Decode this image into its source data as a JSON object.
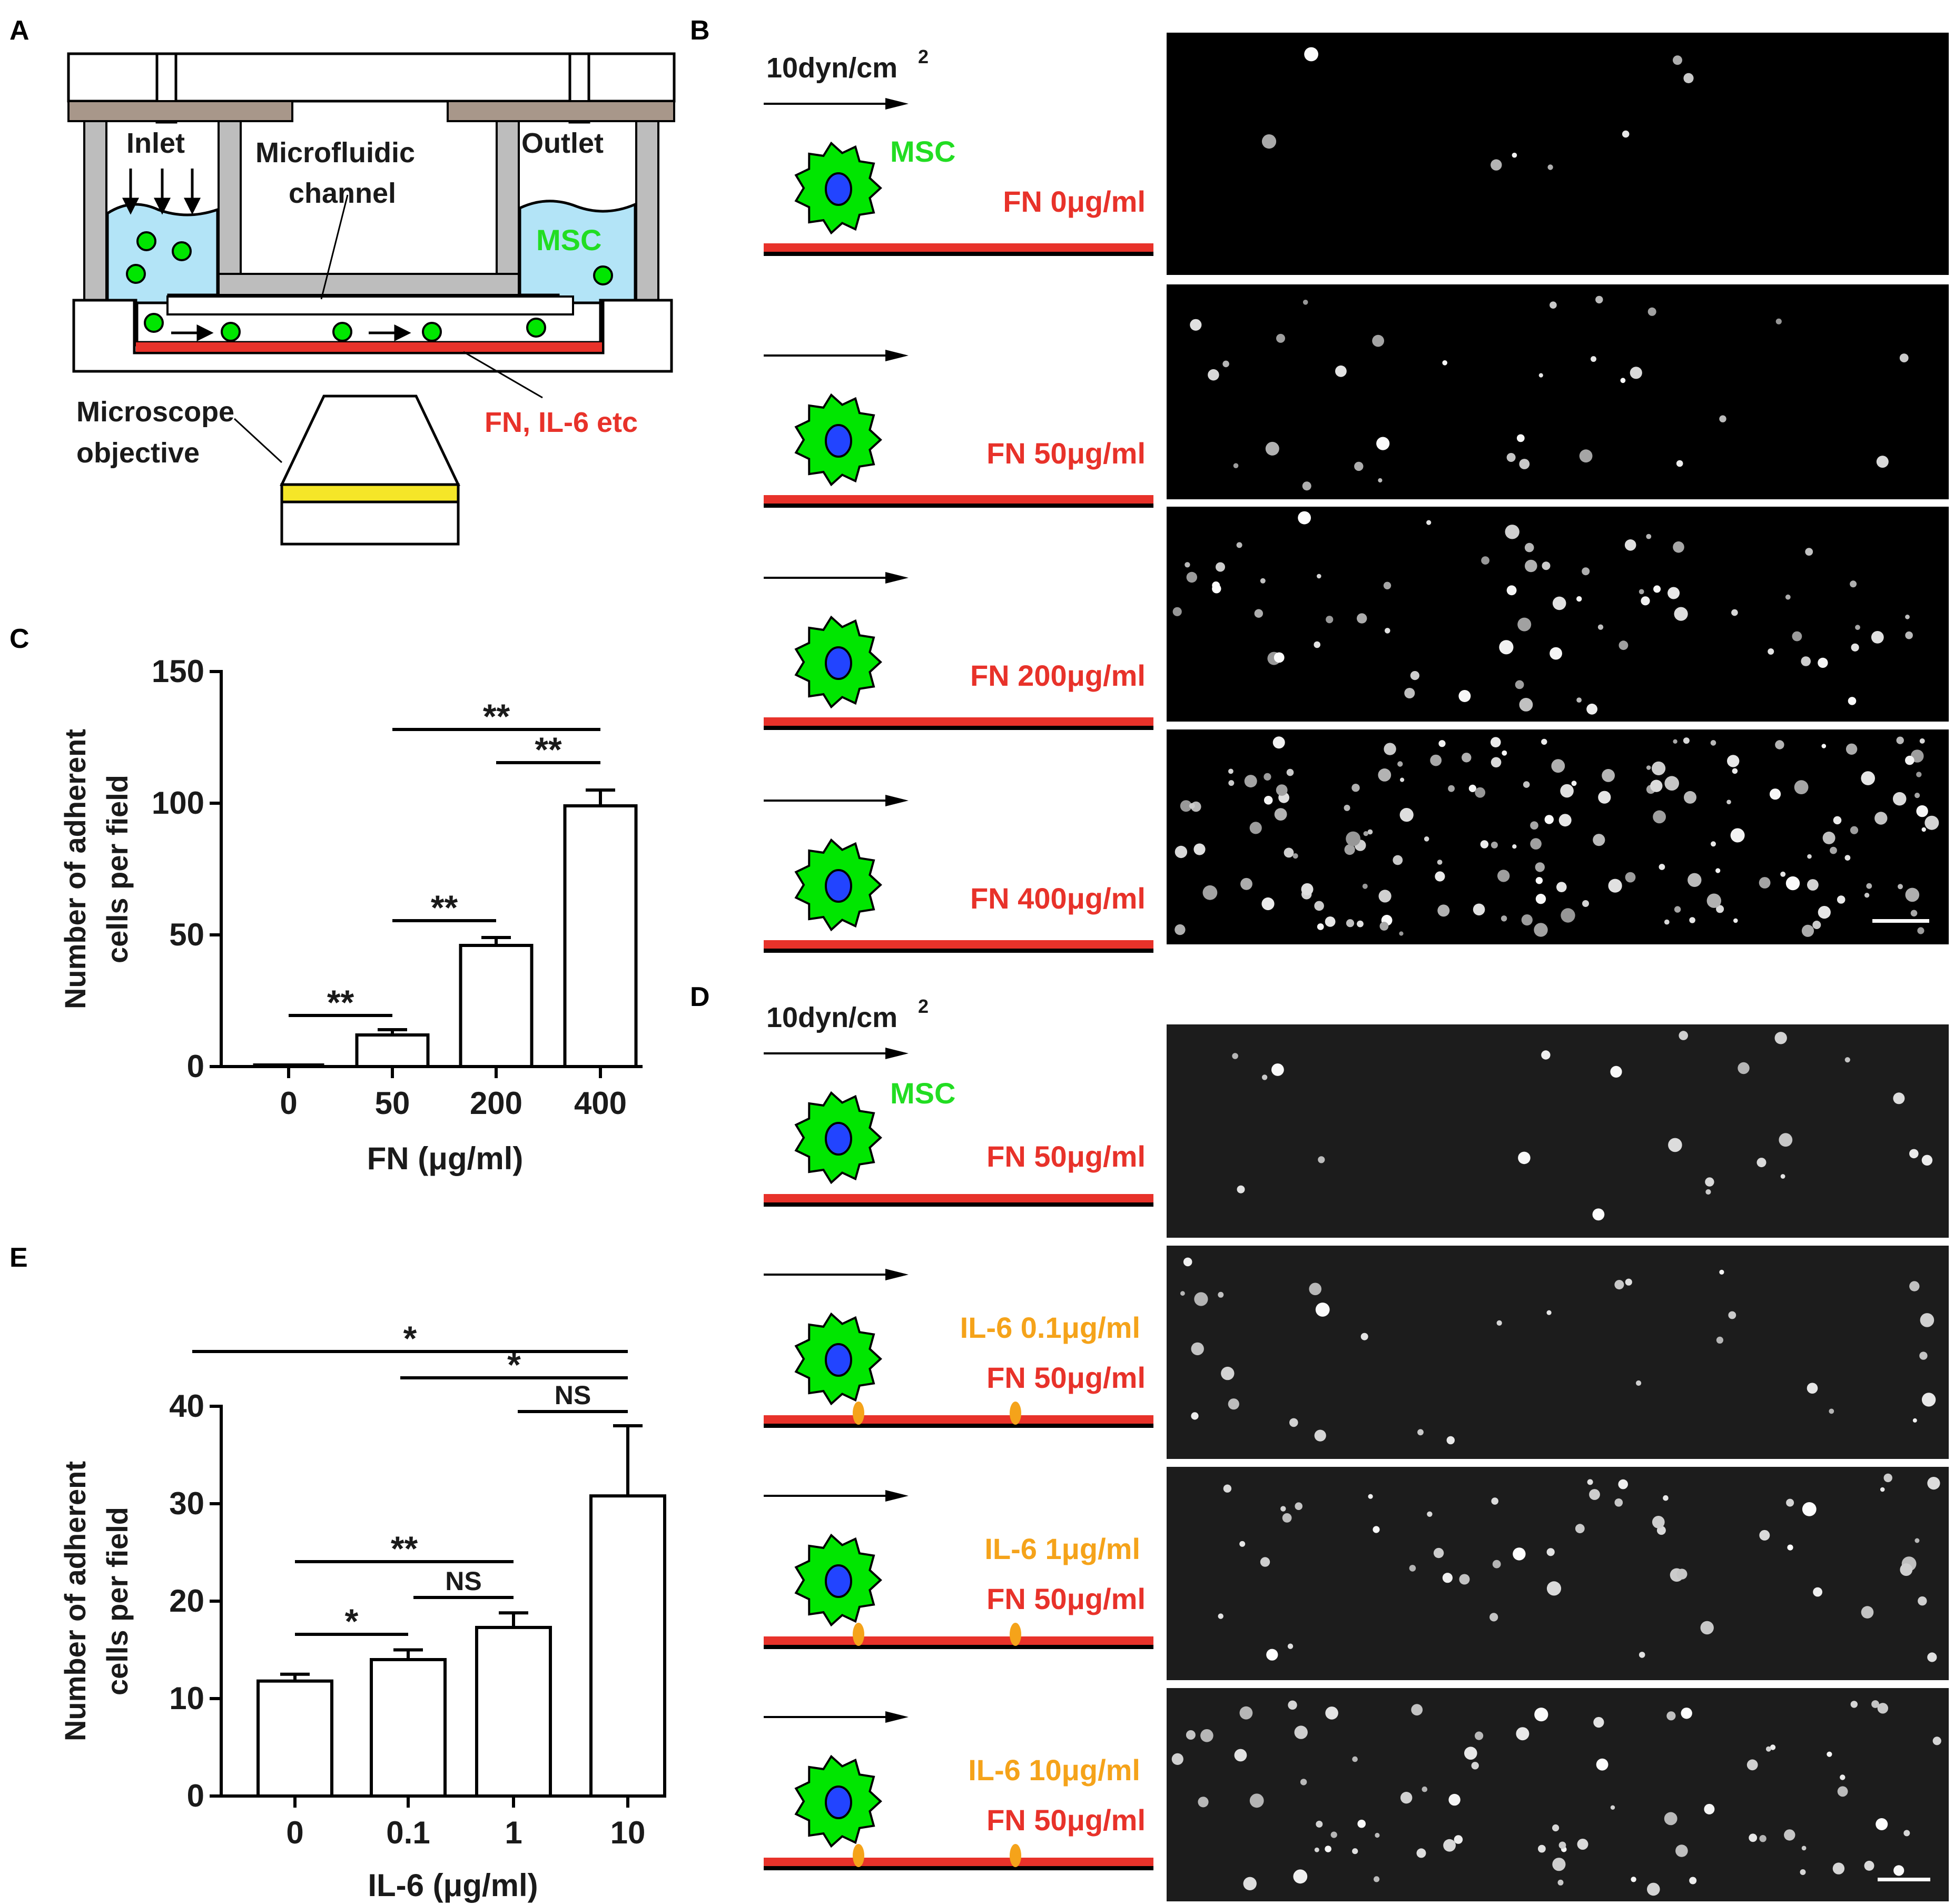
{
  "colors": {
    "red": "#e8322a",
    "green": "#00e600",
    "label_green": "#22dd22",
    "blue": "#2244ff",
    "orange": "#f5a31a",
    "channel_blue": "#b3e4f7",
    "wall_gray": "#bdbdbd",
    "brown": "#a8978a"
  },
  "panel_labels": {
    "a": "A",
    "b": "B",
    "c": "C",
    "d": "D",
    "e": "E"
  },
  "panelA": {
    "inlet": "Inlet",
    "outlet": "Outlet",
    "channel_line1": "Microfluidic",
    "channel_line2": "channel",
    "msc": "MSC",
    "coating": "FN, IL-6 etc",
    "objective_line1": "Microscope",
    "objective_line2": "objective"
  },
  "panelB": {
    "flow_base": "10dyn/cm",
    "flow_sup": "2",
    "msc": "MSC",
    "rows": [
      {
        "fn": "FN 0μg/ml",
        "cells": 8
      },
      {
        "fn": "FN 50μg/ml",
        "cells": 30
      },
      {
        "fn": "FN 200μg/ml",
        "cells": 62
      },
      {
        "fn": "FN 400μg/ml",
        "cells": 150
      }
    ]
  },
  "panelD": {
    "flow_base": "10dyn/cm",
    "flow_sup": "2",
    "msc": "MSC",
    "rows": [
      {
        "il6": "",
        "fn": "FN 50μg/ml",
        "cells": 22
      },
      {
        "il6": "IL-6 0.1μg/ml",
        "fn": "FN 50μg/ml",
        "cells": 30
      },
      {
        "il6": "IL-6 1μg/ml",
        "fn": "FN 50μg/ml",
        "cells": 48
      },
      {
        "il6": "IL-6 10μg/ml",
        "fn": "FN 50μg/ml",
        "cells": 72
      }
    ]
  },
  "chart_data": [
    {
      "panel": "C",
      "type": "bar",
      "categories": [
        "0",
        "50",
        "200",
        "400"
      ],
      "values": [
        0,
        12,
        46,
        99
      ],
      "errors": [
        0,
        2,
        3,
        6
      ],
      "xlabel": "FN (μg/ml)",
      "ylabel_line1": "Number of adherent",
      "ylabel_line2": "cells per field",
      "ylim": [
        0,
        150
      ],
      "yticks": [
        "0",
        "50",
        "100",
        "150"
      ],
      "significance": [
        {
          "from": 0,
          "to": 1,
          "label": "**"
        },
        {
          "from": 1,
          "to": 2,
          "label": "**"
        },
        {
          "from": 2,
          "to": 3,
          "label": "**"
        },
        {
          "from": 1,
          "to": 3,
          "label": "**"
        }
      ]
    },
    {
      "panel": "E",
      "type": "bar",
      "categories": [
        "0",
        "0.1",
        "1",
        "10"
      ],
      "values": [
        11.8,
        14,
        17.3,
        30.8
      ],
      "errors": [
        0.7,
        1,
        1.5,
        7.2
      ],
      "xlabel": "IL-6 (μg/ml)",
      "ylabel_line1": "Number of adherent",
      "ylabel_line2": "cells per field",
      "ylim": [
        0,
        40
      ],
      "yticks": [
        "0",
        "10",
        "20",
        "30",
        "40"
      ],
      "significance": [
        {
          "from": 0,
          "to": 1,
          "label": "*"
        },
        {
          "from": 1,
          "to": 2,
          "label": "NS"
        },
        {
          "from": 0,
          "to": 2,
          "label": "**"
        },
        {
          "from": 2,
          "to": 3,
          "label": "NS"
        },
        {
          "from": 1,
          "to": 3,
          "label": "*"
        },
        {
          "from": 0,
          "to": 3,
          "label": "*"
        }
      ]
    }
  ]
}
